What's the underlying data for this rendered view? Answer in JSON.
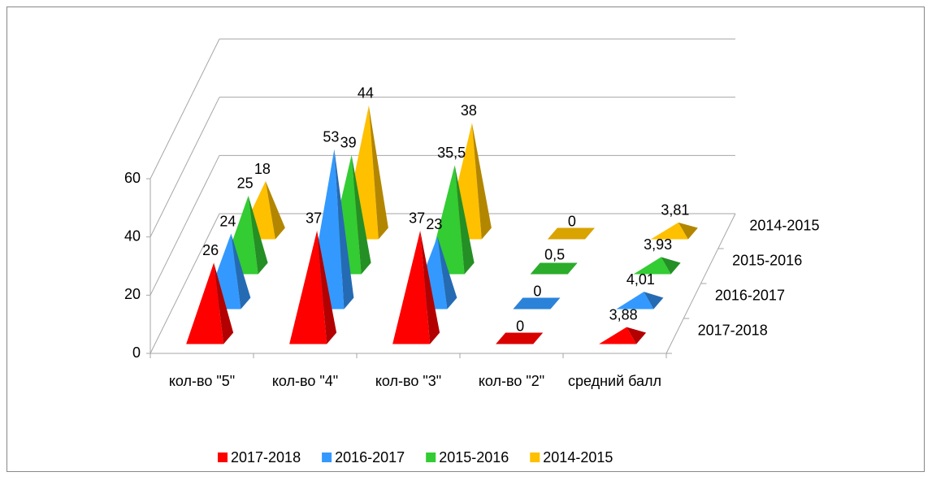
{
  "chart_data": {
    "type": "pyramid3d",
    "categories": [
      "кол-во \"5\"",
      "кол-во \"4\"",
      "кол-во \"3\"",
      "кол-во \"2\"",
      "средний балл"
    ],
    "series": [
      {
        "name": "2017-2018",
        "color": "#ff0000",
        "values": [
          26,
          37,
          37,
          0,
          3.88
        ],
        "value_labels": [
          "26",
          "37",
          "37",
          "0",
          "3,88"
        ]
      },
      {
        "name": "2016-2017",
        "color": "#3399ff",
        "values": [
          24,
          53,
          23,
          0,
          4.01
        ],
        "value_labels": [
          "24",
          "53",
          "23",
          "0",
          "4,01"
        ]
      },
      {
        "name": "2015-2016",
        "color": "#33cc33",
        "values": [
          25,
          39,
          35.5,
          0.5,
          3.93
        ],
        "value_labels": [
          "25",
          "39",
          "35,5",
          "0,5",
          "3,93"
        ]
      },
      {
        "name": "2014-2015",
        "color": "#ffc000",
        "values": [
          18,
          44,
          38,
          0,
          3.81
        ],
        "value_labels": [
          "18",
          "44",
          "38",
          "0",
          "3,81"
        ]
      }
    ],
    "ylim": [
      0,
      60
    ],
    "yticks": [
      0,
      20,
      40,
      60
    ],
    "grid": true,
    "legend": "bottom"
  }
}
